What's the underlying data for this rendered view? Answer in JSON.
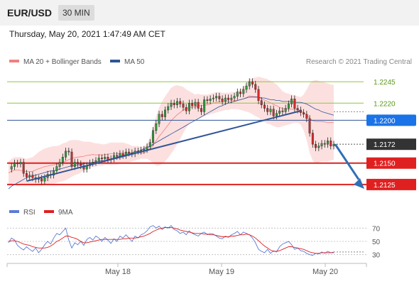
{
  "header": {
    "symbol": "EUR/USD",
    "timeframe": "30 MIN",
    "timestamp": "Thursday, May 20, 2021 1:47:49 AM CET"
  },
  "legend": {
    "bollinger": "MA 20 + Bollinger Bands",
    "ma50": "MA 50",
    "copyright": "Research © 2021 Trading Central",
    "rsi": "RSI",
    "rsi_ma": "9MA"
  },
  "colors": {
    "bollinger": "#f08080",
    "ma50": "#2f5597",
    "resistance": "#8dc63f",
    "support": "#e02020",
    "pivot": "#2f5597",
    "pivot_label_bg": "#1a73e8",
    "current_label_bg": "#333333",
    "rsi": "#5b7bd5",
    "rsi_ma": "#e02020"
  },
  "chart_data": [
    {
      "type": "line",
      "title": "",
      "levels": [
        {
          "label": "1.2245",
          "value": 1.2245,
          "kind": "resistance"
        },
        {
          "label": "1.2220",
          "value": 1.222,
          "kind": "resistance"
        },
        {
          "label": "1.2200",
          "value": 1.22,
          "kind": "pivot"
        },
        {
          "label": "1.2172",
          "value": 1.2172,
          "kind": "current"
        },
        {
          "label": "1.2150",
          "value": 1.215,
          "kind": "support"
        },
        {
          "label": "1.2125",
          "value": 1.2125,
          "kind": "support"
        }
      ],
      "x_tick_labels": [
        "May 18",
        "May 19",
        "May 20"
      ],
      "ylim": [
        1.211,
        1.226
      ],
      "price_series": [
        1.2143,
        1.2146,
        1.215,
        1.2149,
        1.2151,
        1.2138,
        1.2134,
        1.2136,
        1.2133,
        1.2131,
        1.2132,
        1.2129,
        1.2133,
        1.2137,
        1.2136,
        1.2141,
        1.2146,
        1.2151,
        1.2157,
        1.2164,
        1.2163,
        1.2146,
        1.2151,
        1.2149,
        1.2147,
        1.2143,
        1.2147,
        1.215,
        1.2151,
        1.2153,
        1.2156,
        1.2155,
        1.2157,
        1.2154,
        1.2155,
        1.2159,
        1.2158,
        1.2161,
        1.2159,
        1.2163,
        1.2162,
        1.2161,
        1.2164,
        1.2164,
        1.2165,
        1.2166,
        1.2169,
        1.2174,
        1.2188,
        1.2196,
        1.2207,
        1.2204,
        1.2212,
        1.2216,
        1.222,
        1.2218,
        1.2222,
        1.2219,
        1.2215,
        1.2211,
        1.222,
        1.2217,
        1.2221,
        1.2214,
        1.221,
        1.2224,
        1.2223,
        1.2225,
        1.2226,
        1.2228,
        1.2225,
        1.2222,
        1.2226,
        1.2224,
        1.2226,
        1.2228,
        1.2233,
        1.2231,
        1.2236,
        1.224,
        1.2245,
        1.2242,
        1.2236,
        1.2223,
        1.2218,
        1.2214,
        1.221,
        1.2213,
        1.2205,
        1.2208,
        1.2211,
        1.221,
        1.2214,
        1.2219,
        1.2225,
        1.2214,
        1.2212,
        1.2209,
        1.2207,
        1.2202,
        1.2185,
        1.2172,
        1.2168,
        1.217,
        1.2173,
        1.2172,
        1.2176,
        1.217,
        1.2172
      ],
      "bollinger_upper": [
        1.2152,
        1.2155,
        1.2157,
        1.2157,
        1.2157,
        1.2156,
        1.2155,
        1.2156,
        1.2157,
        1.216,
        1.2163,
        1.2165,
        1.2167,
        1.2168,
        1.2169,
        1.217,
        1.217,
        1.2171,
        1.2173,
        1.2174,
        1.2176,
        1.2177,
        1.2177,
        1.2177,
        1.2176,
        1.2175,
        1.2175,
        1.2175,
        1.2174,
        1.2173,
        1.2173,
        1.2172,
        1.2172,
        1.2173,
        1.2174,
        1.2174,
        1.2174,
        1.2174,
        1.2174,
        1.2173,
        1.2172,
        1.217,
        1.217,
        1.217,
        1.2169,
        1.2169,
        1.2173,
        1.218,
        1.2192,
        1.2205,
        1.2215,
        1.2222,
        1.2228,
        1.2233,
        1.2238,
        1.224,
        1.2241,
        1.224,
        1.2239,
        1.2236,
        1.2234,
        1.2232,
        1.223,
        1.2231,
        1.223,
        1.223,
        1.223,
        1.2231,
        1.2232,
        1.2233,
        1.2233,
        1.2232,
        1.2232,
        1.2232,
        1.2233,
        1.2233,
        1.2234,
        1.2236,
        1.2239,
        1.2243,
        1.2248,
        1.2249,
        1.225,
        1.2251,
        1.225,
        1.2249,
        1.2248,
        1.2246,
        1.2244,
        1.2242,
        1.2238,
        1.2234,
        1.2232,
        1.2231,
        1.223,
        1.2229,
        1.2228,
        1.2227,
        1.223,
        1.2236,
        1.2243,
        1.2246,
        1.2247,
        1.2246,
        1.2245,
        1.2244,
        1.2243,
        1.2242,
        1.2241
      ],
      "bollinger_lower": [
        1.2125,
        1.2126,
        1.2127,
        1.2127,
        1.2126,
        1.2126,
        1.2125,
        1.2124,
        1.2124,
        1.2124,
        1.2124,
        1.2124,
        1.2125,
        1.2125,
        1.2126,
        1.2126,
        1.2127,
        1.2128,
        1.2129,
        1.213,
        1.2132,
        1.2134,
        1.2136,
        1.2137,
        1.2139,
        1.2141,
        1.2143,
        1.2144,
        1.2146,
        1.2146,
        1.2147,
        1.2147,
        1.2148,
        1.2148,
        1.2148,
        1.2148,
        1.2148,
        1.2149,
        1.215,
        1.215,
        1.2151,
        1.2152,
        1.2153,
        1.2154,
        1.2155,
        1.2155,
        1.2155,
        1.2153,
        1.215,
        1.2147,
        1.2147,
        1.2149,
        1.2152,
        1.2156,
        1.2161,
        1.2166,
        1.2172,
        1.2178,
        1.2185,
        1.2191,
        1.2196,
        1.2199,
        1.2201,
        1.2203,
        1.2204,
        1.2205,
        1.2206,
        1.2207,
        1.2208,
        1.2209,
        1.221,
        1.2211,
        1.2212,
        1.2212,
        1.2213,
        1.2213,
        1.2213,
        1.2212,
        1.2211,
        1.221,
        1.2209,
        1.2207,
        1.2205,
        1.2203,
        1.22,
        1.2198,
        1.2196,
        1.2195,
        1.2193,
        1.2192,
        1.2192,
        1.2193,
        1.2194,
        1.2195,
        1.2196,
        1.2197,
        1.2197,
        1.2195,
        1.2188,
        1.2177,
        1.2162,
        1.2153,
        1.215,
        1.2151,
        1.2152,
        1.2152,
        1.2152,
        1.2153,
        1.2154
      ],
      "ma50": [
        1.212,
        1.2123,
        1.2125,
        1.2127,
        1.2129,
        1.2131,
        1.2133,
        1.2134,
        1.2135,
        1.2136,
        1.2137,
        1.2138,
        1.2139,
        1.214,
        1.2141,
        1.2141,
        1.2142,
        1.2143,
        1.2144,
        1.2145,
        1.2146,
        1.2147,
        1.2147,
        1.2148,
        1.2148,
        1.2149,
        1.215,
        1.215,
        1.2151,
        1.2151,
        1.2152,
        1.2153,
        1.2153,
        1.2154,
        1.2155,
        1.2156,
        1.2157,
        1.2158,
        1.2159,
        1.216,
        1.2161,
        1.2162,
        1.2163,
        1.2164,
        1.2165,
        1.2167,
        1.2168,
        1.217,
        1.2172,
        1.2174,
        1.2176,
        1.2178,
        1.218,
        1.2182,
        1.2184,
        1.2186,
        1.2188,
        1.219,
        1.2192,
        1.2194,
        1.2196,
        1.2198,
        1.22,
        1.2202,
        1.2204,
        1.2206,
        1.2208,
        1.221,
        1.2212,
        1.2214,
        1.2216,
        1.2217,
        1.2219,
        1.222,
        1.2221,
        1.2222,
        1.2223,
        1.2224,
        1.2225,
        1.2226,
        1.2227,
        1.2227,
        1.2227,
        1.2227,
        1.2226,
        1.2226,
        1.2225,
        1.2224,
        1.2224,
        1.2223,
        1.2223,
        1.2222,
        1.2222,
        1.2222,
        1.2222,
        1.2221,
        1.2221,
        1.2221,
        1.222,
        1.2219,
        1.2217,
        1.2215,
        1.2213,
        1.2212,
        1.221,
        1.2209,
        1.2208,
        1.2207,
        1.2206
      ]
    },
    {
      "type": "line",
      "title": "",
      "ylim": [
        20,
        80
      ],
      "y_ticks": [
        70,
        50,
        30
      ],
      "series": [
        {
          "name": "RSI",
          "values": [
            48,
            55,
            52,
            44,
            40,
            37,
            42,
            38,
            35,
            40,
            33,
            38,
            45,
            50,
            46,
            55,
            62,
            60,
            65,
            70,
            52,
            40,
            48,
            45,
            50,
            44,
            53,
            56,
            52,
            58,
            55,
            50,
            56,
            52,
            47,
            54,
            50,
            58,
            55,
            60,
            55,
            50,
            58,
            55,
            60,
            62,
            66,
            72,
            74,
            70,
            73,
            68,
            72,
            70,
            74,
            68,
            66,
            62,
            64,
            60,
            66,
            62,
            60,
            58,
            62,
            64,
            60,
            62,
            61,
            58,
            55,
            54,
            58,
            56,
            60,
            62,
            65,
            60,
            64,
            62,
            60,
            55,
            48,
            38,
            35,
            33,
            38,
            32,
            36,
            34,
            42,
            46,
            48,
            50,
            45,
            38,
            40,
            36,
            35,
            32,
            30,
            29,
            32,
            31,
            34,
            32,
            35,
            33,
            34
          ]
        },
        {
          "name": "9MA",
          "values": [
            50,
            51,
            51,
            50,
            48,
            46,
            45,
            44,
            42,
            41,
            40,
            40,
            40,
            41,
            43,
            46,
            50,
            52,
            55,
            58,
            58,
            56,
            55,
            53,
            50,
            48,
            48,
            49,
            50,
            51,
            52,
            53,
            53,
            53,
            53,
            53,
            53,
            53,
            54,
            54,
            55,
            55,
            55,
            56,
            57,
            58,
            60,
            62,
            65,
            67,
            69,
            70,
            71,
            71,
            71,
            70,
            69,
            67,
            66,
            65,
            64,
            63,
            62,
            62,
            62,
            61,
            61,
            60,
            60,
            59,
            58,
            57,
            57,
            57,
            58,
            58,
            59,
            60,
            60,
            61,
            60,
            58,
            55,
            51,
            47,
            43,
            40,
            37,
            35,
            35,
            36,
            38,
            40,
            42,
            42,
            41,
            40,
            39,
            38,
            36,
            34,
            33,
            32,
            32,
            33,
            33,
            33,
            33,
            33
          ]
        }
      ]
    }
  ]
}
